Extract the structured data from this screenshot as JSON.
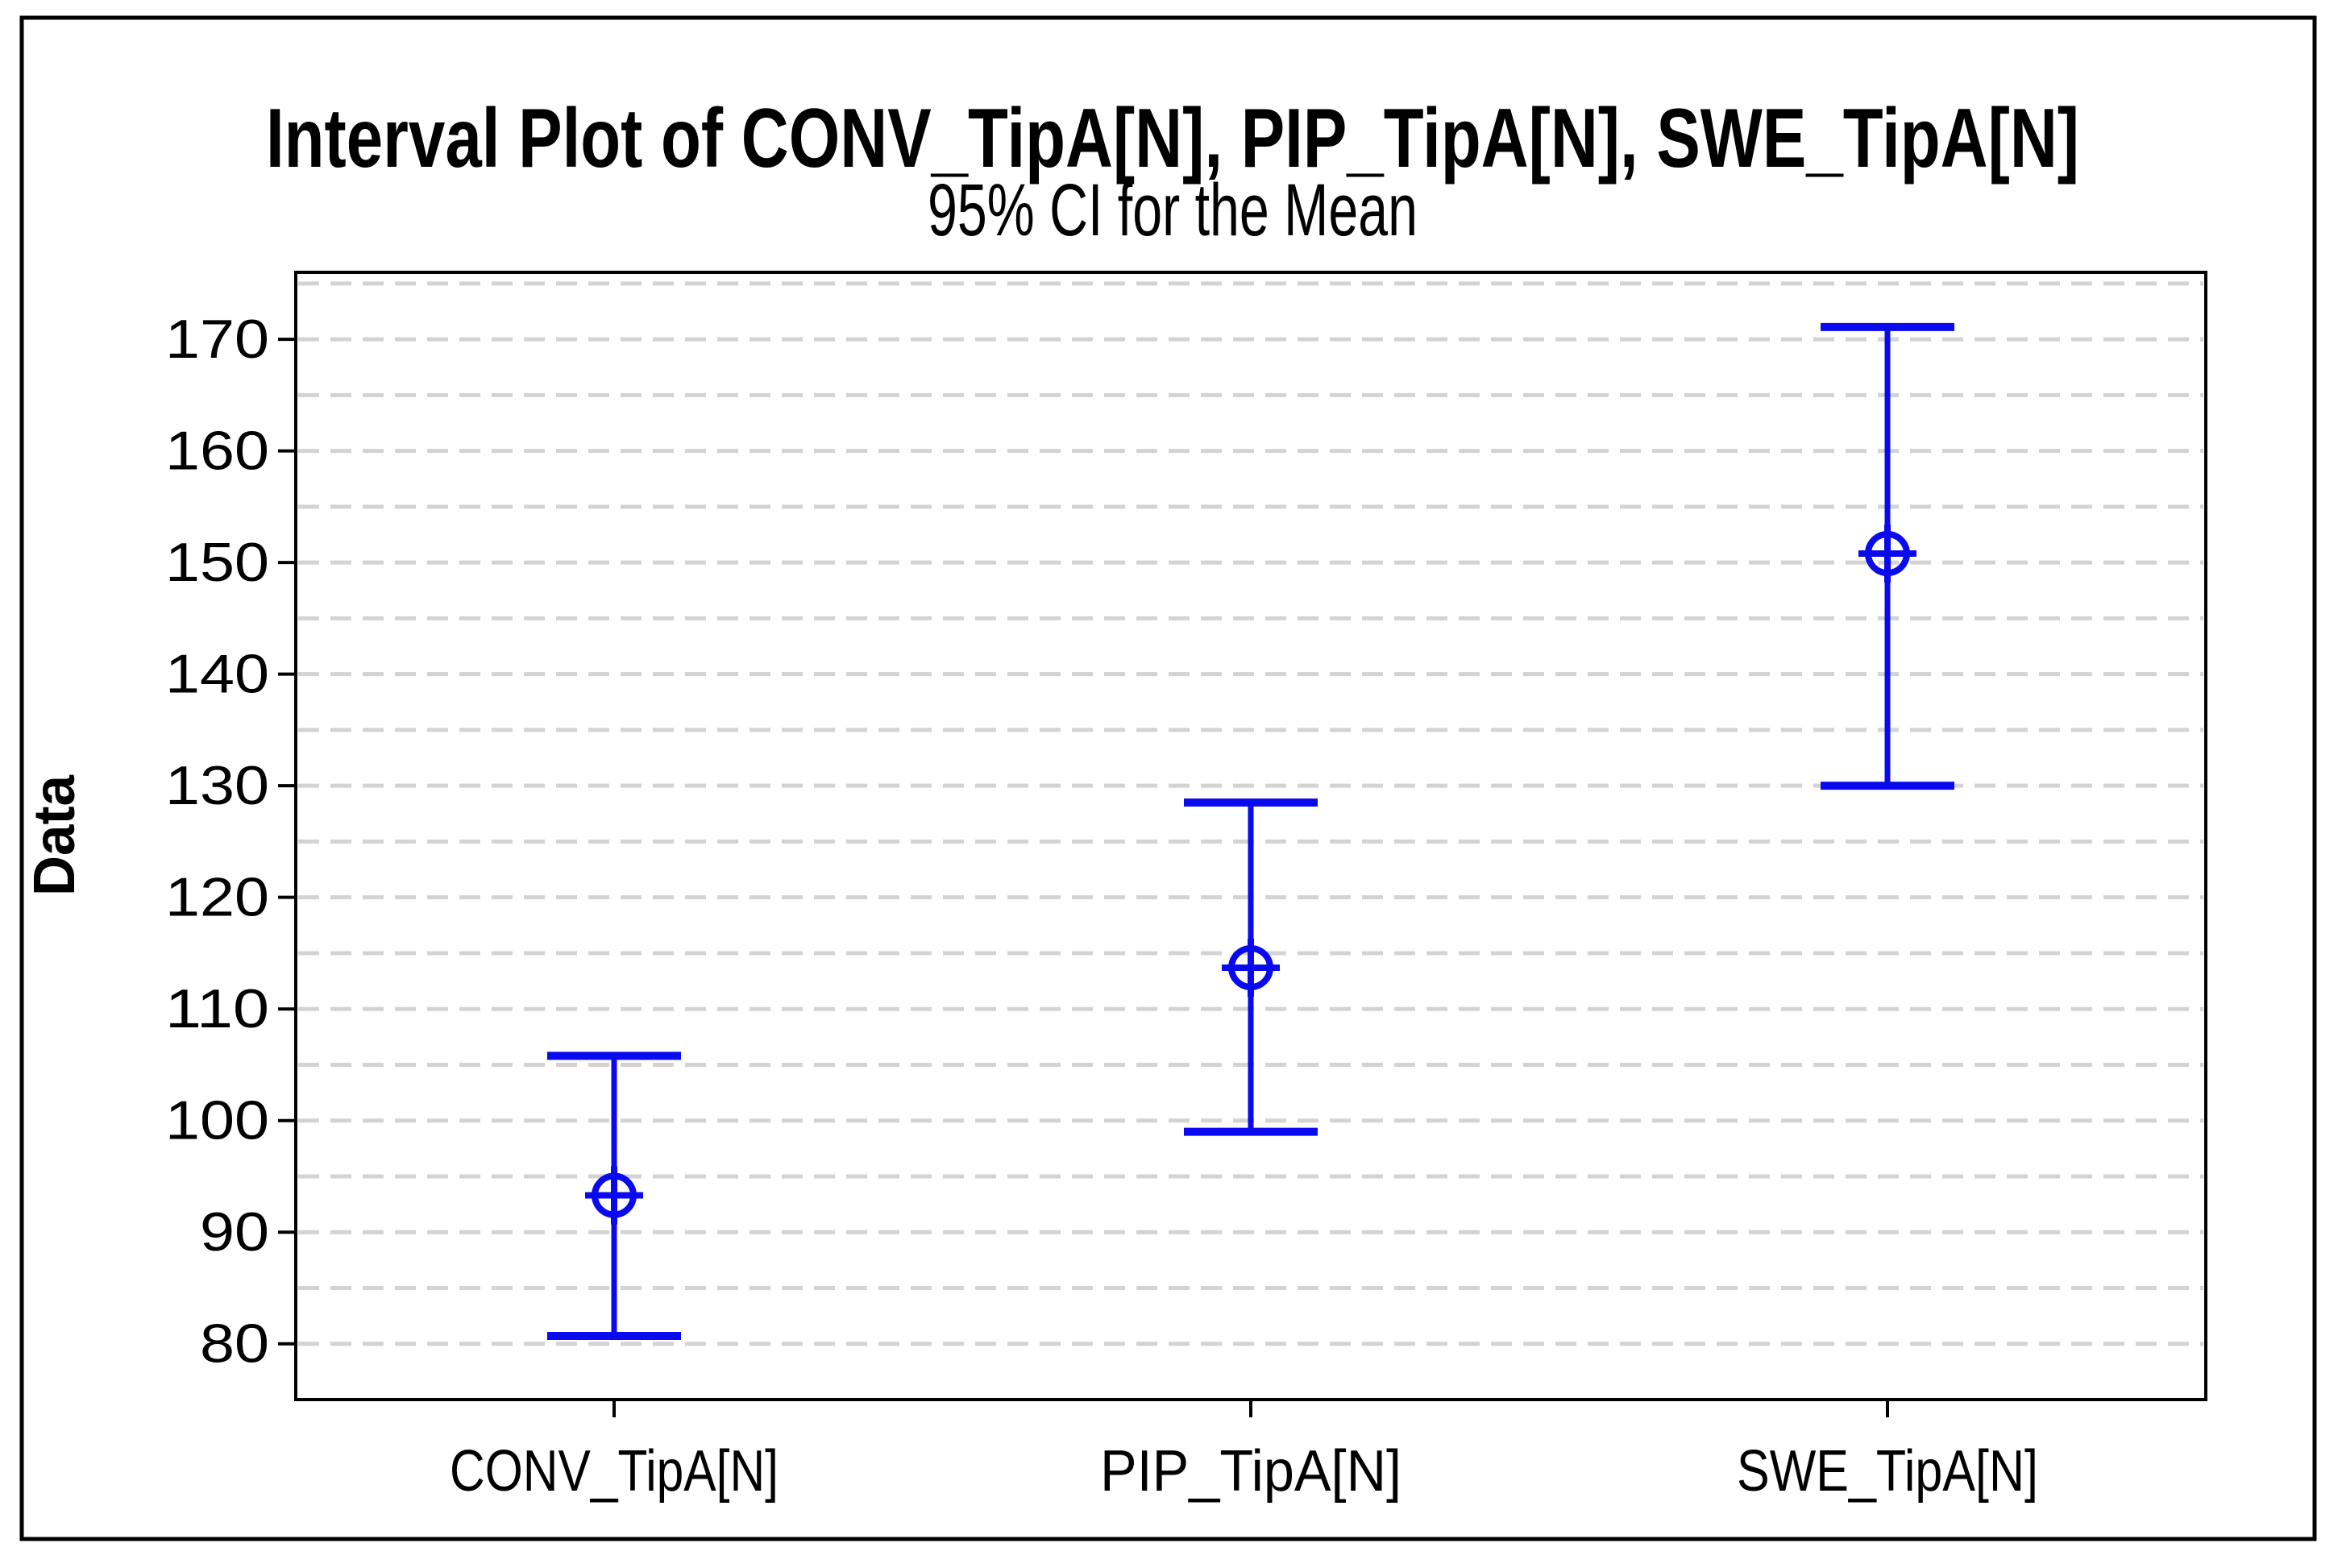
{
  "window": {
    "background_color": "#ffffff",
    "outer_border_color": "#000000"
  },
  "chart_data": {
    "type": "interval",
    "title": "Interval Plot of CONV_TipA[N], PIP_TipA[N], SWE_TipA[N]",
    "subtitle": "95% CI for the Mean",
    "xlabel": "",
    "ylabel": "Data",
    "categories": [
      "CONV_TipA[N]",
      "PIP_TipA[N]",
      "SWE_TipA[N]"
    ],
    "series": [
      {
        "name": "95% CI for the Mean",
        "points": [
          {
            "category": "CONV_TipA[N]",
            "mean": 93.3,
            "ci_lower": 80.7,
            "ci_upper": 105.8
          },
          {
            "category": "PIP_TipA[N]",
            "mean": 113.7,
            "ci_lower": 99.0,
            "ci_upper": 128.5
          },
          {
            "category": "SWE_TipA[N]",
            "mean": 150.8,
            "ci_lower": 130.0,
            "ci_upper": 171.1
          }
        ]
      }
    ],
    "yticks": [
      80,
      90,
      100,
      110,
      120,
      130,
      140,
      150,
      160,
      170
    ],
    "ylim": [
      75,
      176
    ],
    "gridlines": {
      "orientation": "horizontal",
      "step": 5,
      "min": 80,
      "max": 175,
      "style": "dashed",
      "visible": true
    },
    "legend_position": "none",
    "marker": "circle-plus",
    "colors": {
      "interval": "#0a0af0",
      "gridline": "#d3d3d3",
      "axis": "#000000",
      "text": "#000000",
      "plot_background": "#ffffff"
    }
  }
}
